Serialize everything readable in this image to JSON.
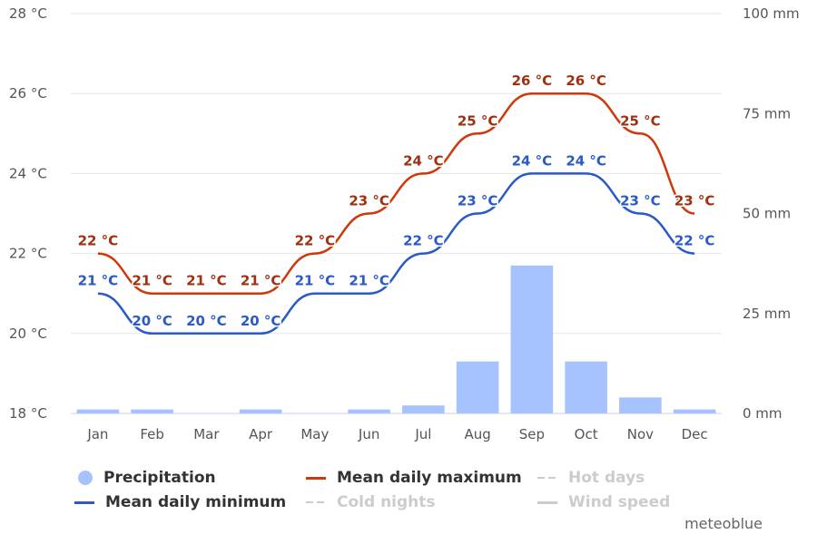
{
  "chart_data": {
    "type": "line",
    "categories": [
      "Jan",
      "Feb",
      "Mar",
      "Apr",
      "May",
      "Jun",
      "Jul",
      "Aug",
      "Sep",
      "Oct",
      "Nov",
      "Dec"
    ],
    "series": [
      {
        "name": "Precipitation",
        "kind": "bar",
        "axis": "right",
        "color": "#a7c3ff",
        "values": [
          1,
          1,
          0,
          1,
          0,
          1,
          2,
          13,
          37,
          13,
          4,
          1
        ]
      },
      {
        "name": "Mean daily maximum",
        "kind": "line",
        "axis": "left",
        "color": "#d0380b",
        "label_color": "#a0300f",
        "values": [
          22,
          21,
          21,
          21,
          22,
          23,
          24,
          25,
          26,
          26,
          25,
          23
        ]
      },
      {
        "name": "Mean daily minimum",
        "kind": "line",
        "axis": "left",
        "color": "#2a5ac8",
        "label_color": "#2a5ac8",
        "values": [
          21,
          20,
          20,
          20,
          21,
          21,
          22,
          23,
          24,
          24,
          23,
          22
        ]
      }
    ],
    "y_left": {
      "ticks": [
        "18 °C",
        "20 °C",
        "22 °C",
        "24 °C",
        "26 °C",
        "28 °C"
      ],
      "ylim": [
        18,
        28
      ]
    },
    "y_right": {
      "ticks": [
        "0 mm",
        "25 mm",
        "50 mm",
        "75 mm",
        "100 mm"
      ],
      "ylim": [
        0,
        100
      ]
    },
    "data_label_unit": " °C",
    "grid": true,
    "legend_position": "bottom"
  },
  "legend": [
    {
      "label": "Precipitation",
      "symbol": "dot",
      "color": "#a7c3ff",
      "active": true
    },
    {
      "label": "Mean daily maximum",
      "symbol": "line",
      "color": "#d0380b",
      "active": true
    },
    {
      "label": "Hot days",
      "symbol": "dash",
      "color": "#cccccc",
      "active": false
    },
    {
      "label": "Mean daily minimum",
      "symbol": "line",
      "color": "#2a5ac8",
      "active": true
    },
    {
      "label": "Cold nights",
      "symbol": "dash",
      "color": "#cccccc",
      "active": false
    },
    {
      "label": "Wind speed",
      "symbol": "line",
      "color": "#cccccc",
      "active": false
    }
  ],
  "credit": "meteoblue"
}
